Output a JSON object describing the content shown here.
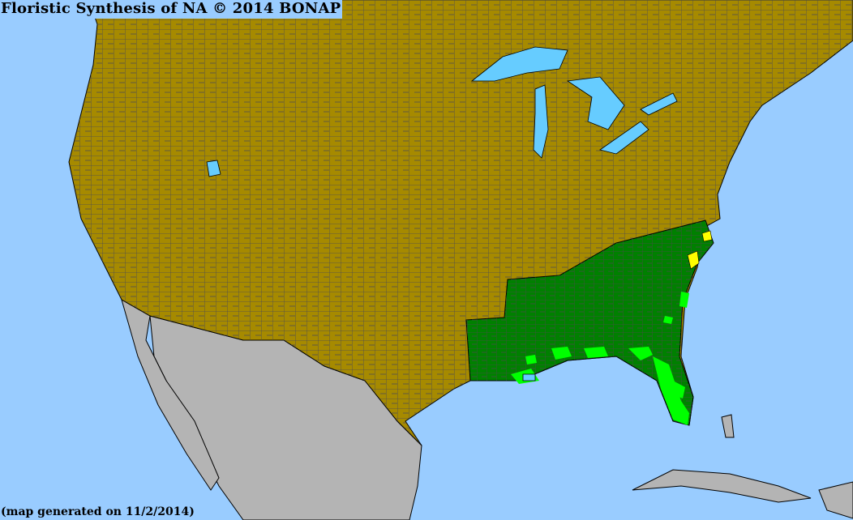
{
  "map": {
    "title": "Floristic Synthesis of NA © 2014 BONAP",
    "footer": "(map generated on 11/2/2014)",
    "colors": {
      "ocean": "#99ccff",
      "present_not_rare": "#008000",
      "native_state_level": "#a68a00",
      "present_county": "#00ff00",
      "rare": "#ffff00",
      "outside_region": "#b4b4b4",
      "borders": "#404040"
    }
  }
}
